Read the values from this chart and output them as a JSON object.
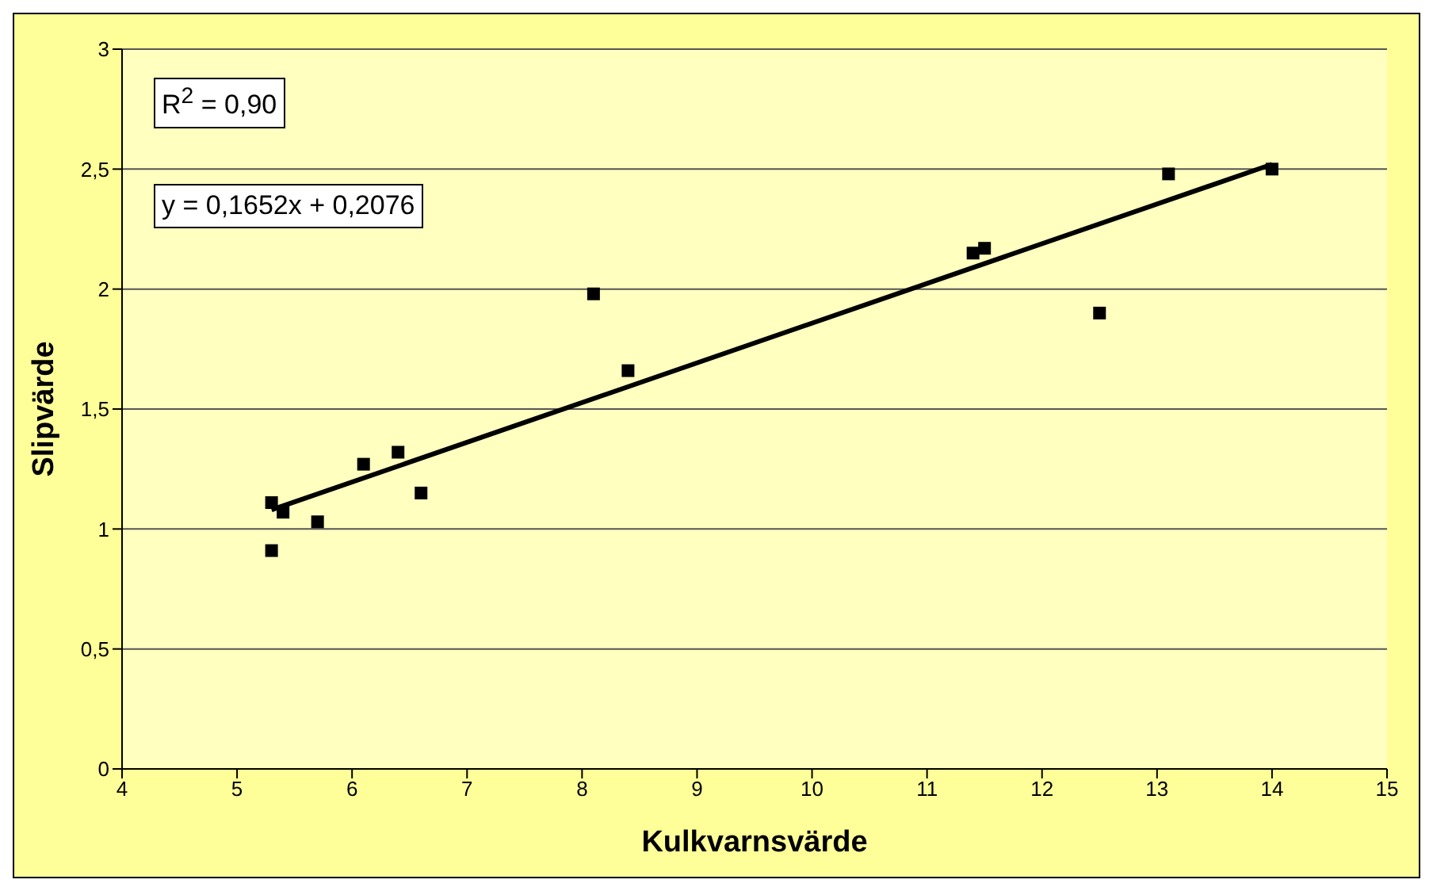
{
  "chart_data": {
    "type": "scatter",
    "xlabel": "Kulkvarnsvärde",
    "ylabel": "Slipvärde",
    "annotations": [
      "R$^{2}$ = 0,90",
      "y = 0,1652x + 0,2076"
    ],
    "xlim": [
      4,
      15
    ],
    "xticks": [
      4,
      5,
      6,
      7,
      8,
      9,
      10,
      11,
      12,
      13,
      14,
      15
    ],
    "ylim": [
      0,
      3
    ],
    "yticks": [
      0,
      {
        "value": 0.5,
        "label": "0,5"
      },
      1,
      {
        "value": 1.5,
        "label": "1,5"
      },
      2,
      {
        "value": 2.5,
        "label": "2,5"
      },
      3
    ],
    "grid": "y",
    "marker": "square",
    "series": [
      {
        "color": "#000000",
        "x": [
          5.3,
          5.3,
          5.4,
          5.7,
          6.1,
          6.4,
          6.6,
          8.1,
          8.4,
          11.4,
          11.5,
          12.5,
          13.1,
          14
        ],
        "values": [
          1.11,
          0.91,
          1.07,
          1.03,
          1.27,
          1.32,
          1.15,
          1.98,
          1.66,
          2.15,
          2.17,
          1.9,
          2.48,
          2.5
        ]
      },
      {
        "type": "line",
        "color": "#000000",
        "line_style": "solid",
        "marker": "none",
        "x": [
          5.3,
          14
        ],
        "values": [
          1.08,
          2.52
        ]
      }
    ]
  }
}
